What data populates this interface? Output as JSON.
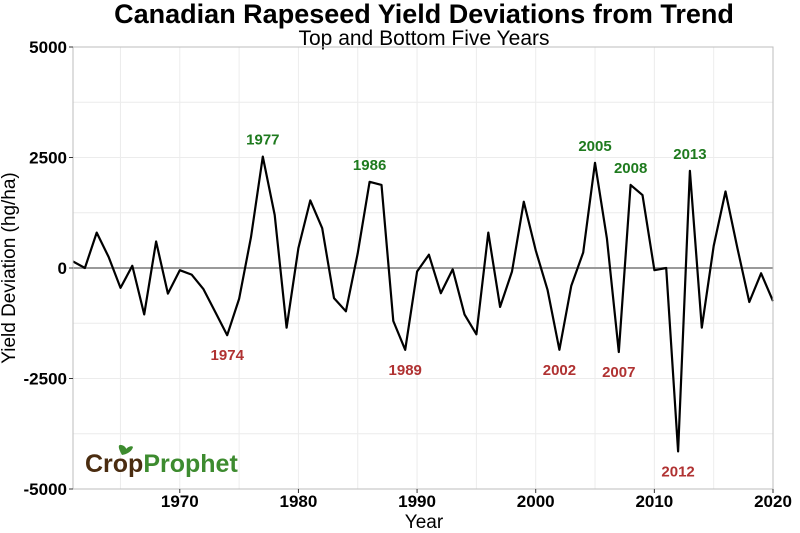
{
  "chart_data": {
    "type": "line",
    "title": "Canadian Rapeseed Yield Deviations from Trend",
    "subtitle": "Top and Bottom Five Years",
    "xlabel": "Year",
    "ylabel": "Yield Deviation (hg/ha)",
    "xlim": [
      1961,
      2020
    ],
    "ylim": [
      -5000,
      5000
    ],
    "x_ticks": [
      1970,
      1980,
      1990,
      2000,
      2010,
      2020
    ],
    "y_ticks": [
      -5000,
      -2500,
      0,
      2500,
      5000
    ],
    "x_tick_labels": [
      "1970",
      "1980",
      "1990",
      "2000",
      "2010",
      "2020"
    ],
    "y_tick_labels": [
      "-5000",
      "-2500",
      "0",
      "2500",
      "5000"
    ],
    "grid": true,
    "zero_line": true,
    "series": [
      {
        "x": [
          1961,
          1962,
          1963,
          1964,
          1965,
          1966,
          1967,
          1968,
          1969,
          1970,
          1971,
          1972,
          1973,
          1974,
          1975,
          1976,
          1977,
          1978,
          1979,
          1980,
          1981,
          1982,
          1983,
          1984,
          1985,
          1986,
          1987,
          1988,
          1989,
          1990,
          1991,
          1992,
          1993,
          1994,
          1995,
          1996,
          1997,
          1998,
          1999,
          2000,
          2001,
          2002,
          2003,
          2004,
          2005,
          2006,
          2007,
          2008,
          2009,
          2010,
          2011,
          2012,
          2013,
          2014,
          2015,
          2016,
          2017,
          2018,
          2019,
          2020
        ],
        "y": [
          150,
          0,
          800,
          250,
          -450,
          50,
          -1050,
          600,
          -580,
          -50,
          -150,
          -480,
          -1000,
          -1520,
          -700,
          700,
          2520,
          1200,
          -1350,
          450,
          1530,
          900,
          -680,
          -980,
          330,
          1950,
          1880,
          -1200,
          -1850,
          -80,
          300,
          -570,
          -30,
          -1050,
          -1500,
          800,
          -880,
          -80,
          1500,
          400,
          -500,
          -1850,
          -400,
          350,
          2380,
          670,
          -1900,
          1880,
          1650,
          -50,
          0,
          -4150,
          2200,
          -1350,
          500,
          1730,
          450,
          -770,
          -120,
          -750
        ]
      }
    ],
    "annotations": [
      {
        "year": 1977,
        "label": "1977",
        "type": "top",
        "value": 2520
      },
      {
        "year": 1986,
        "label": "1986",
        "type": "top",
        "value": 1950
      },
      {
        "year": 2005,
        "label": "2005",
        "type": "top",
        "value": 2380
      },
      {
        "year": 2008,
        "label": "2008",
        "type": "top",
        "value": 1880
      },
      {
        "year": 2013,
        "label": "2013",
        "type": "top",
        "value": 2200
      },
      {
        "year": 1974,
        "label": "1974",
        "type": "bottom",
        "value": -1520
      },
      {
        "year": 1989,
        "label": "1989",
        "type": "bottom",
        "value": -1850
      },
      {
        "year": 2002,
        "label": "2002",
        "type": "bottom",
        "value": -1850
      },
      {
        "year": 2007,
        "label": "2007",
        "type": "bottom",
        "value": -1900
      },
      {
        "year": 2012,
        "label": "2012",
        "type": "bottom",
        "value": -4150
      }
    ],
    "colors": {
      "line": "#000000",
      "top_label": "#1e7a1e",
      "bottom_label": "#b03232",
      "zero_line": "#999999",
      "grid": "#ececec"
    }
  },
  "logo": {
    "part1": "Crop",
    "part2": "Prophet",
    "color1": "#4a2c10",
    "color2": "#3d8b2f"
  }
}
